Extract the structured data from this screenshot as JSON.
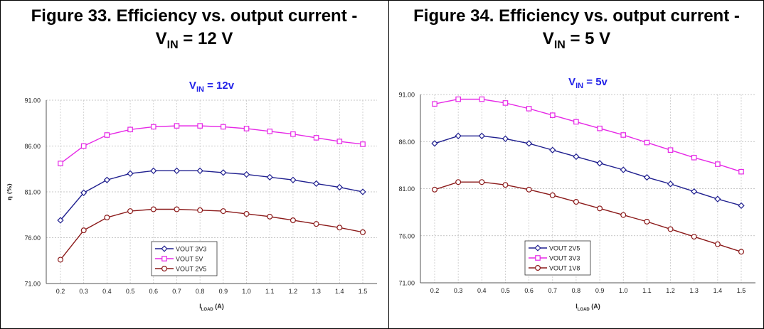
{
  "figures": [
    {
      "caption_line1": "Figure 33. Efficiency vs. output current -",
      "caption_v": "V",
      "caption_sub": "IN",
      "caption_rest": " = 12 V"
    },
    {
      "caption_line1": "Figure 34. Efficiency vs. output current -",
      "caption_v": "V",
      "caption_sub": "IN",
      "caption_rest": " = 5 V"
    }
  ],
  "chart_data": [
    {
      "type": "line",
      "title": "VIN = 12v",
      "title_color": "#2323e8",
      "xlabel": "ILOAD (A)",
      "ylabel": "η (%)",
      "x": [
        0.2,
        0.3,
        0.4,
        0.5,
        0.6,
        0.7,
        0.8,
        0.9,
        1.0,
        1.1,
        1.2,
        1.3,
        1.4,
        1.5
      ],
      "x_ticks": [
        "0.2",
        "0.3",
        "0.4",
        "0.5",
        "0.6",
        "0.7",
        "0.8",
        "0.9",
        "1.0",
        "1.1",
        "1.2",
        "1.3",
        "1.4",
        "1.5"
      ],
      "ylim": [
        71,
        91
      ],
      "y_ticks": [
        "71.00",
        "76.00",
        "81.00",
        "86.00",
        "91.00"
      ],
      "grid": true,
      "legend_position": "bottom-left",
      "series": [
        {
          "name": "VOUT 3V3",
          "color": "#1f1f8f",
          "marker": "diamond",
          "values": [
            77.9,
            80.9,
            82.3,
            83.0,
            83.3,
            83.3,
            83.3,
            83.1,
            82.9,
            82.6,
            82.3,
            81.9,
            81.5,
            81.0
          ]
        },
        {
          "name": "VOUT 5V",
          "color": "#e628e6",
          "marker": "square",
          "values": [
            84.1,
            86.0,
            87.2,
            87.8,
            88.1,
            88.2,
            88.2,
            88.1,
            87.9,
            87.6,
            87.3,
            86.9,
            86.5,
            86.2
          ]
        },
        {
          "name": "VOUT 2V5",
          "color": "#8b1a1a",
          "marker": "circle",
          "values": [
            73.6,
            76.8,
            78.2,
            78.9,
            79.1,
            79.1,
            79.0,
            78.9,
            78.6,
            78.3,
            77.9,
            77.5,
            77.1,
            76.6
          ]
        }
      ]
    },
    {
      "type": "line",
      "title": "VIN = 5v",
      "title_color": "#2323e8",
      "xlabel": "ILOAD (A)",
      "ylabel": "",
      "x": [
        0.2,
        0.3,
        0.4,
        0.5,
        0.6,
        0.7,
        0.8,
        0.9,
        1.0,
        1.1,
        1.2,
        1.3,
        1.4,
        1.5
      ],
      "x_ticks": [
        "0.2",
        "0.3",
        "0.4",
        "0.5",
        "0.6",
        "0.7",
        "0.8",
        "0.9",
        "1.0",
        "1.1",
        "1.2",
        "1.3",
        "1.4",
        "1.5"
      ],
      "ylim": [
        71,
        91
      ],
      "y_ticks": [
        "71.00",
        "76.00",
        "81.00",
        "86.00",
        "91.00"
      ],
      "grid": true,
      "legend_position": "bottom-left",
      "series": [
        {
          "name": "VOUT 2V5",
          "color": "#1f1f8f",
          "marker": "diamond",
          "values": [
            85.8,
            86.6,
            86.6,
            86.3,
            85.8,
            85.1,
            84.4,
            83.7,
            83.0,
            82.2,
            81.5,
            80.7,
            79.9,
            79.2
          ]
        },
        {
          "name": "VOUT 3V3",
          "color": "#e628e6",
          "marker": "square",
          "values": [
            90.0,
            90.5,
            90.5,
            90.1,
            89.5,
            88.8,
            88.1,
            87.4,
            86.7,
            85.9,
            85.1,
            84.3,
            83.6,
            82.8
          ]
        },
        {
          "name": "VOUT 1V8",
          "color": "#8b1a1a",
          "marker": "circle",
          "values": [
            80.9,
            81.7,
            81.7,
            81.4,
            80.9,
            80.3,
            79.6,
            78.9,
            78.2,
            77.5,
            76.7,
            75.9,
            75.1,
            74.3
          ]
        }
      ]
    }
  ]
}
